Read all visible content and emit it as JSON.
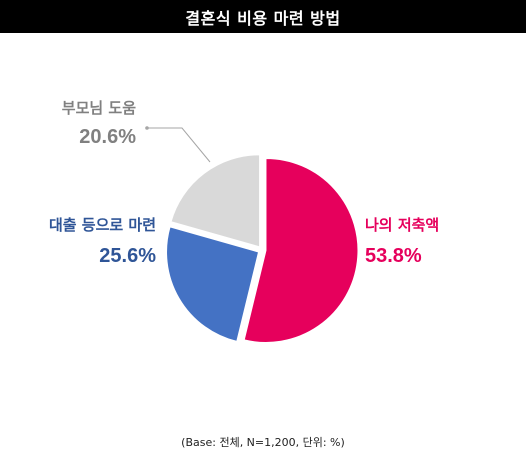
{
  "title": "결혼식 비용 마련 방법",
  "footnote": "(Base: 전체, N=1,200, 단위: %)",
  "chart_data": {
    "type": "pie",
    "title": "결혼식 비용 마련 방법",
    "unit": "%",
    "slices": [
      {
        "label": "나의 저축액",
        "value": 53.8,
        "value_text": "53.8%",
        "color": "#E6005C"
      },
      {
        "label": "대출 등으로 마련",
        "value": 25.6,
        "value_text": "25.6%",
        "color": "#4472C4"
      },
      {
        "label": "부모님 도움",
        "value": 20.6,
        "value_text": "20.6%",
        "color": "#D9D9D9"
      }
    ],
    "label_colors": {
      "나의 저축액": "#E6005C",
      "대출 등으로 마련": "#2F5597",
      "부모님 도움": "#808080"
    }
  }
}
